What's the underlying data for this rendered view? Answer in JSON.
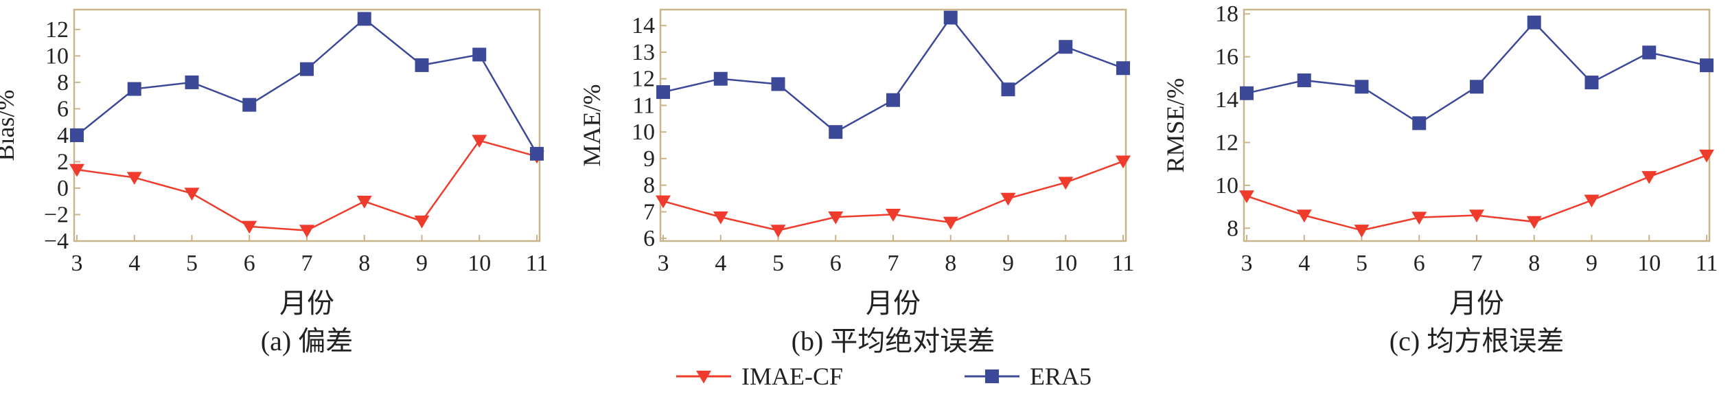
{
  "colors": {
    "imae": "#ee3b2c",
    "era5": "#3c4898",
    "frame": "#c9b48a",
    "text": "#222222"
  },
  "legend": {
    "items": [
      {
        "label": "IMAE-CF",
        "color": "#ee3b2c",
        "marker": "triangle-down"
      },
      {
        "label": "ERA5",
        "color": "#3c4898",
        "marker": "square"
      }
    ]
  },
  "chart_data": [
    {
      "type": "line",
      "caption": "(a) 偏差",
      "xlabel": "月份",
      "ylabel": "Bias/%",
      "categories": [
        "3",
        "4",
        "5",
        "6",
        "7",
        "8",
        "9",
        "10",
        "11"
      ],
      "ylim": [
        -4,
        13.5
      ],
      "yticks": [
        -4,
        -2,
        0,
        2,
        4,
        6,
        8,
        10,
        12
      ],
      "yticklabels": [
        "−4",
        "−2",
        "0",
        "2",
        "4",
        "6",
        "8",
        "10",
        "12"
      ],
      "grid": false,
      "series": [
        {
          "name": "IMAE-CF",
          "values": [
            1.4,
            0.8,
            -0.4,
            -2.9,
            -3.2,
            -1.0,
            -2.5,
            3.6,
            2.4
          ]
        },
        {
          "name": "ERA5",
          "values": [
            4.0,
            7.5,
            8.0,
            6.3,
            9.0,
            12.8,
            9.3,
            10.1,
            2.6
          ]
        }
      ]
    },
    {
      "type": "line",
      "caption": "(b) 平均绝对误差",
      "xlabel": "月份",
      "ylabel": "MAE/%",
      "categories": [
        "3",
        "4",
        "5",
        "6",
        "7",
        "8",
        "9",
        "10",
        "11"
      ],
      "ylim": [
        5.9,
        14.6
      ],
      "yticks": [
        6,
        7,
        8,
        9,
        10,
        11,
        12,
        13,
        14
      ],
      "yticklabels": [
        "6",
        "7",
        "8",
        "9",
        "10",
        "11",
        "12",
        "13",
        "14"
      ],
      "grid": false,
      "series": [
        {
          "name": "IMAE-CF",
          "values": [
            7.4,
            6.8,
            6.3,
            6.8,
            6.9,
            6.6,
            7.5,
            8.1,
            8.9
          ]
        },
        {
          "name": "ERA5",
          "values": [
            11.5,
            12.0,
            11.8,
            10.0,
            11.2,
            14.3,
            11.6,
            13.2,
            12.4
          ]
        }
      ]
    },
    {
      "type": "line",
      "caption": "(c) 均方根误差",
      "xlabel": "月份",
      "ylabel": "RMSE/%",
      "categories": [
        "3",
        "4",
        "5",
        "6",
        "7",
        "8",
        "9",
        "10",
        "11"
      ],
      "ylim": [
        7.4,
        18.2
      ],
      "yticks": [
        8,
        10,
        12,
        14,
        16,
        18
      ],
      "yticklabels": [
        "8",
        "10",
        "12",
        "14",
        "16",
        "18"
      ],
      "grid": false,
      "series": [
        {
          "name": "IMAE-CF",
          "values": [
            9.5,
            8.6,
            7.9,
            8.5,
            8.6,
            8.3,
            9.3,
            10.4,
            11.4
          ]
        },
        {
          "name": "ERA5",
          "values": [
            14.3,
            14.9,
            14.6,
            12.9,
            14.6,
            17.6,
            14.8,
            16.2,
            15.6
          ]
        }
      ]
    }
  ]
}
